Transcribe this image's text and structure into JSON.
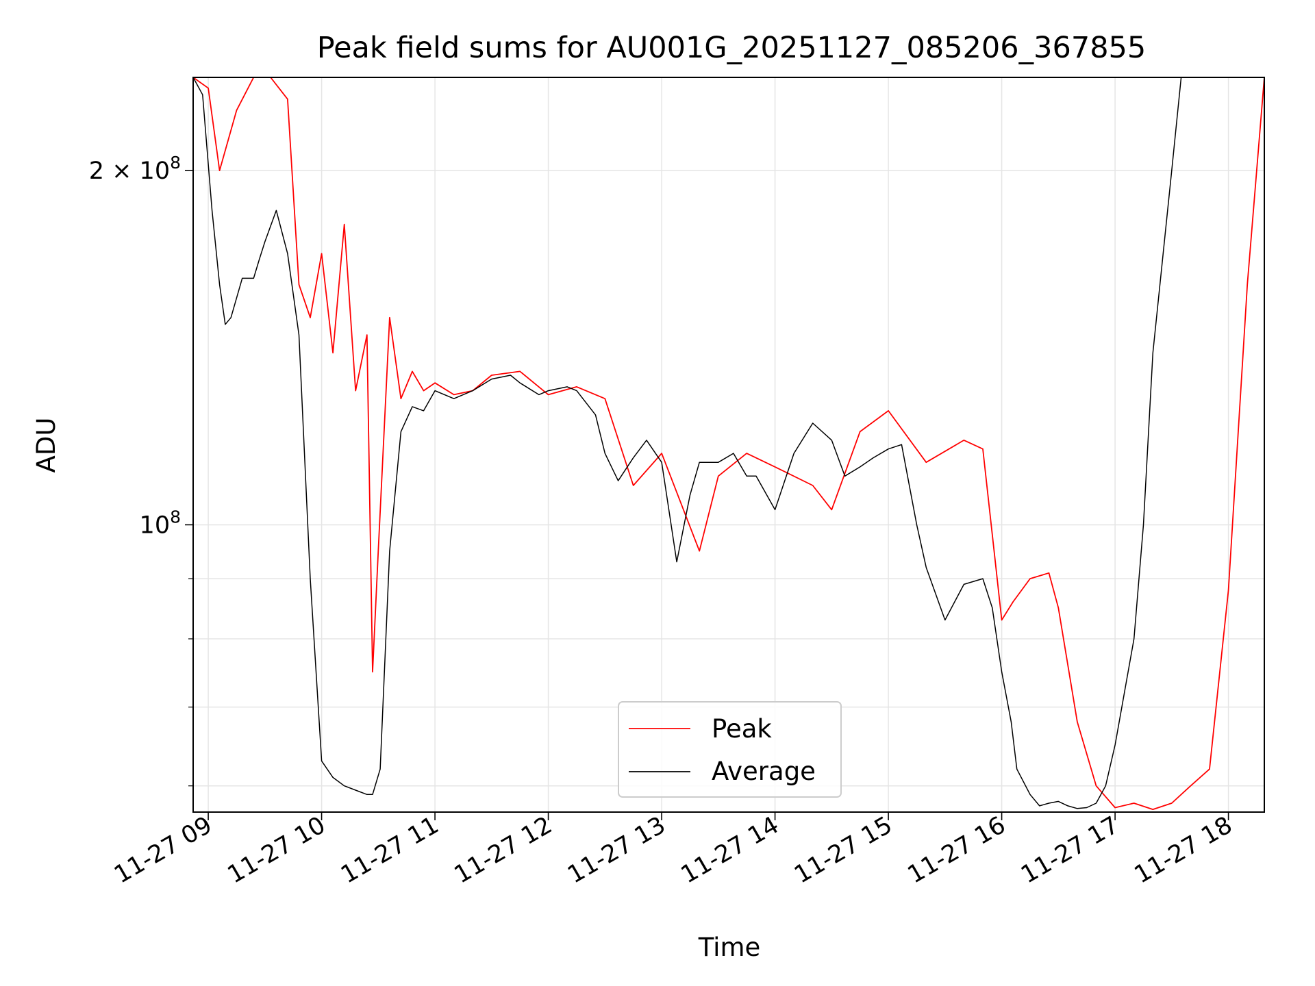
{
  "chart_data": {
    "type": "line",
    "title": "Peak field sums for AU001G_20251127_085206_367855",
    "xlabel": "Time",
    "ylabel": "ADU",
    "yscale": "log",
    "grid": true,
    "legend_position": "lower center",
    "x_ticks": [
      "11-27 09",
      "11-27 10",
      "11-27 11",
      "11-27 12",
      "11-27 13",
      "11-27 14",
      "11-27 15",
      "11-27 16",
      "11-27 17",
      "11-27 18"
    ],
    "xlim": [
      "2025-11-27 08:52",
      "2025-11-27 18:19"
    ],
    "ylim": [
      57000000,
      240000000
    ],
    "y_major_ticks": [
      {
        "value": 200000000,
        "label_base": "2 × 10",
        "label_exp": "8"
      },
      {
        "value": 100000000,
        "label_base": "10",
        "label_exp": "8"
      }
    ],
    "y_minor_ticks": [
      60000000,
      70000000,
      80000000,
      90000000
    ],
    "series": [
      {
        "name": "Peak",
        "color": "#ff0000",
        "x": [
          "2025-11-27 08:52",
          "2025-11-27 09:00",
          "2025-11-27 09:06",
          "2025-11-27 09:15",
          "2025-11-27 09:24",
          "2025-11-27 09:33",
          "2025-11-27 09:42",
          "2025-11-27 09:48",
          "2025-11-27 09:54",
          "2025-11-27 10:00",
          "2025-11-27 10:06",
          "2025-11-27 10:12",
          "2025-11-27 10:18",
          "2025-11-27 10:24",
          "2025-11-27 10:27",
          "2025-11-27 10:30",
          "2025-11-27 10:36",
          "2025-11-27 10:42",
          "2025-11-27 10:48",
          "2025-11-27 10:54",
          "2025-11-27 11:00",
          "2025-11-27 11:10",
          "2025-11-27 11:20",
          "2025-11-27 11:30",
          "2025-11-27 11:45",
          "2025-11-27 12:00",
          "2025-11-27 12:15",
          "2025-11-27 12:30",
          "2025-11-27 12:45",
          "2025-11-27 13:00",
          "2025-11-27 13:20",
          "2025-11-27 13:30",
          "2025-11-27 13:45",
          "2025-11-27 14:00",
          "2025-11-27 14:20",
          "2025-11-27 14:30",
          "2025-11-27 14:45",
          "2025-11-27 15:00",
          "2025-11-27 15:20",
          "2025-11-27 15:40",
          "2025-11-27 15:50",
          "2025-11-27 16:00",
          "2025-11-27 16:06",
          "2025-11-27 16:15",
          "2025-11-27 16:25",
          "2025-11-27 16:30",
          "2025-11-27 16:40",
          "2025-11-27 16:50",
          "2025-11-27 17:00",
          "2025-11-27 17:10",
          "2025-11-27 17:20",
          "2025-11-27 17:30",
          "2025-11-27 17:40",
          "2025-11-27 17:50",
          "2025-11-27 18:00",
          "2025-11-27 18:10",
          "2025-11-27 18:19"
        ],
        "y": [
          240000000,
          235000000,
          200000000,
          225000000,
          240000000,
          240000000,
          230000000,
          160000000,
          150000000,
          170000000,
          140000000,
          180000000,
          130000000,
          145000000,
          75000000,
          95000000,
          150000000,
          128000000,
          135000000,
          130000000,
          132000000,
          129000000,
          130000000,
          134000000,
          135000000,
          129000000,
          131000000,
          128000000,
          108000000,
          115000000,
          95000000,
          110000000,
          115000000,
          112000000,
          108000000,
          103000000,
          120000000,
          125000000,
          113000000,
          118000000,
          116000000,
          83000000,
          86000000,
          90000000,
          91000000,
          85000000,
          68000000,
          60000000,
          57500000,
          58000000,
          57300000,
          58000000,
          60000000,
          62000000,
          88000000,
          160000000,
          240000000
        ]
      },
      {
        "name": "Average",
        "color": "#000000",
        "x": [
          "2025-11-27 08:52",
          "2025-11-27 08:57",
          "2025-11-27 09:02",
          "2025-11-27 09:06",
          "2025-11-27 09:09",
          "2025-11-27 09:12",
          "2025-11-27 09:18",
          "2025-11-27 09:24",
          "2025-11-27 09:27",
          "2025-11-27 09:30",
          "2025-11-27 09:36",
          "2025-11-27 09:42",
          "2025-11-27 09:48",
          "2025-11-27 09:54",
          "2025-11-27 10:00",
          "2025-11-27 10:06",
          "2025-11-27 10:12",
          "2025-11-27 10:18",
          "2025-11-27 10:24",
          "2025-11-27 10:27",
          "2025-11-27 10:31",
          "2025-11-27 10:36",
          "2025-11-27 10:42",
          "2025-11-27 10:48",
          "2025-11-27 10:54",
          "2025-11-27 11:00",
          "2025-11-27 11:10",
          "2025-11-27 11:20",
          "2025-11-27 11:30",
          "2025-11-27 11:40",
          "2025-11-27 11:45",
          "2025-11-27 11:55",
          "2025-11-27 12:00",
          "2025-11-27 12:10",
          "2025-11-27 12:15",
          "2025-11-27 12:25",
          "2025-11-27 12:30",
          "2025-11-27 12:37",
          "2025-11-27 12:45",
          "2025-11-27 12:52",
          "2025-11-27 13:00",
          "2025-11-27 13:08",
          "2025-11-27 13:15",
          "2025-11-27 13:20",
          "2025-11-27 13:25",
          "2025-11-27 13:30",
          "2025-11-27 13:38",
          "2025-11-27 13:45",
          "2025-11-27 13:50",
          "2025-11-27 14:00",
          "2025-11-27 14:10",
          "2025-11-27 14:20",
          "2025-11-27 14:30",
          "2025-11-27 14:37",
          "2025-11-27 14:45",
          "2025-11-27 14:52",
          "2025-11-27 15:00",
          "2025-11-27 15:07",
          "2025-11-27 15:15",
          "2025-11-27 15:20",
          "2025-11-27 15:30",
          "2025-11-27 15:40",
          "2025-11-27 15:50",
          "2025-11-27 15:55",
          "2025-11-27 16:00",
          "2025-11-27 16:05",
          "2025-11-27 16:08",
          "2025-11-27 16:15",
          "2025-11-27 16:20",
          "2025-11-27 16:25",
          "2025-11-27 16:30",
          "2025-11-27 16:35",
          "2025-11-27 16:40",
          "2025-11-27 16:45",
          "2025-11-27 16:50",
          "2025-11-27 16:55",
          "2025-11-27 17:00",
          "2025-11-27 17:10",
          "2025-11-27 17:15",
          "2025-11-27 17:20",
          "2025-11-27 17:30",
          "2025-11-27 17:35",
          "2025-11-27 17:40",
          "2025-11-27 17:45",
          "2025-11-27 17:50",
          "2025-11-27 17:55",
          "2025-11-27 18:00",
          "2025-11-27 18:05",
          "2025-11-27 18:10",
          "2025-11-27 18:14",
          "2025-11-27 18:19"
        ],
        "y": [
          240000000,
          232000000,
          185000000,
          160000000,
          148000000,
          150000000,
          162000000,
          162000000,
          168000000,
          174000000,
          185000000,
          170000000,
          145000000,
          90000000,
          63000000,
          61000000,
          60000000,
          59500000,
          59000000,
          59000000,
          62000000,
          95000000,
          120000000,
          126000000,
          125000000,
          130000000,
          128000000,
          130000000,
          133000000,
          134000000,
          132000000,
          129000000,
          130000000,
          131000000,
          130000000,
          124000000,
          115000000,
          109000000,
          114000000,
          118000000,
          113000000,
          93000000,
          106000000,
          113000000,
          113000000,
          113000000,
          115000000,
          110000000,
          110000000,
          103000000,
          115000000,
          122000000,
          118000000,
          110000000,
          112000000,
          114000000,
          116000000,
          117000000,
          100000000,
          92000000,
          83000000,
          89000000,
          90000000,
          85000000,
          75000000,
          68000000,
          62000000,
          59000000,
          57700000,
          58000000,
          58200000,
          57700000,
          57400000,
          57500000,
          58000000,
          60000000,
          65000000,
          80000000,
          100000000,
          140000000,
          200000000,
          240000000,
          240000000,
          240000000,
          240000000,
          240000000,
          240000000,
          240000000,
          240000000,
          240000000,
          240000000
        ]
      }
    ]
  }
}
